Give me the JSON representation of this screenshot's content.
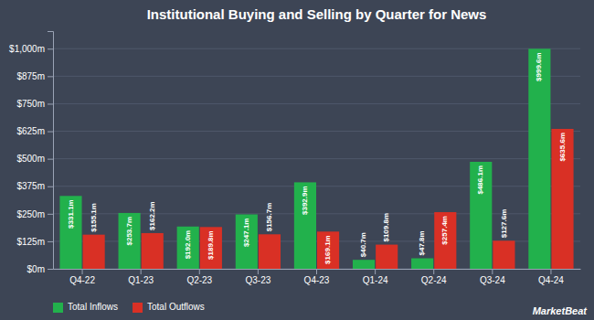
{
  "chart_data": {
    "type": "bar",
    "title": "Institutional Buying and Selling by Quarter for News",
    "categories": [
      "Q4-22",
      "Q1-23",
      "Q2-23",
      "Q3-23",
      "Q4-23",
      "Q1-24",
      "Q2-24",
      "Q3-24",
      "Q4-24"
    ],
    "series": [
      {
        "name": "Total Inflows",
        "color": "#22b14c",
        "values": [
          331.1,
          253.7,
          192.0,
          247.1,
          392.9,
          40.7,
          47.8,
          486.1,
          999.6
        ],
        "value_labels": [
          "$331.1m",
          "$253.7m",
          "$192.0m",
          "$247.1m",
          "$392.9m",
          "$40.7m",
          "$47.8m",
          "$486.1m",
          "$999.6m"
        ]
      },
      {
        "name": "Total Outflows",
        "color": "#d93025",
        "values": [
          155.1,
          162.2,
          189.8,
          156.7,
          169.1,
          109.8,
          257.4,
          127.6,
          635.6
        ],
        "value_labels": [
          "$155.1m",
          "$162.2m",
          "$189.8m",
          "$156.7m",
          "$169.1m",
          "$109.8m",
          "$257.4m",
          "$127.6m",
          "$635.6m"
        ]
      }
    ],
    "ylim": [
      0,
      1080
    ],
    "yticks": [
      {
        "value": 0,
        "label": "$0m"
      },
      {
        "value": 125,
        "label": "$125m"
      },
      {
        "value": 250,
        "label": "$250m"
      },
      {
        "value": 375,
        "label": "$375m"
      },
      {
        "value": 500,
        "label": "$500m"
      },
      {
        "value": 625,
        "label": "$625m"
      },
      {
        "value": 750,
        "label": "$750m"
      },
      {
        "value": 875,
        "label": "$875m"
      },
      {
        "value": 1000,
        "label": "$1,000m"
      }
    ],
    "grid": true,
    "legend": "lower left",
    "data_labels": true,
    "annotations": [
      "MarketBeat"
    ]
  }
}
